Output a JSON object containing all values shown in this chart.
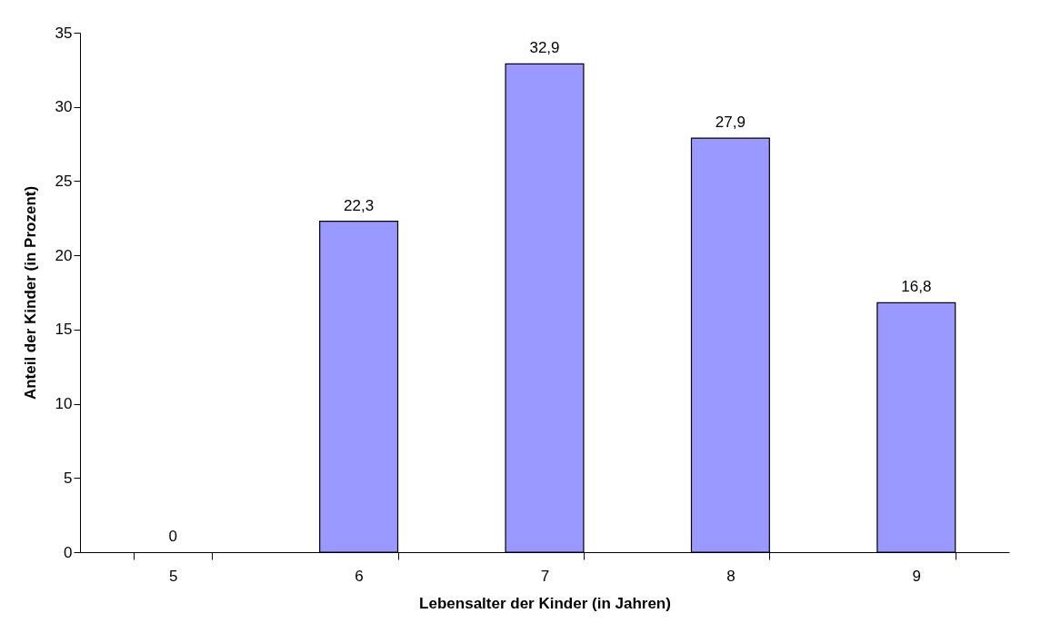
{
  "chart_data": {
    "type": "bar",
    "xlabel": "Lebensalter der Kinder (in Jahren)",
    "ylabel": "Anteil der Kinder (in Prozent)",
    "categories": [
      "5",
      "6",
      "7",
      "8",
      "9"
    ],
    "values": [
      0,
      22.3,
      32.9,
      27.9,
      16.8
    ],
    "value_labels": [
      "0",
      "22,3",
      "32,9",
      "27,9",
      "16,8"
    ],
    "color": "#9999ff",
    "ylim": [
      0,
      35
    ],
    "yticks": [
      0,
      5,
      10,
      15,
      20,
      25,
      30,
      35
    ],
    "grid": false
  }
}
